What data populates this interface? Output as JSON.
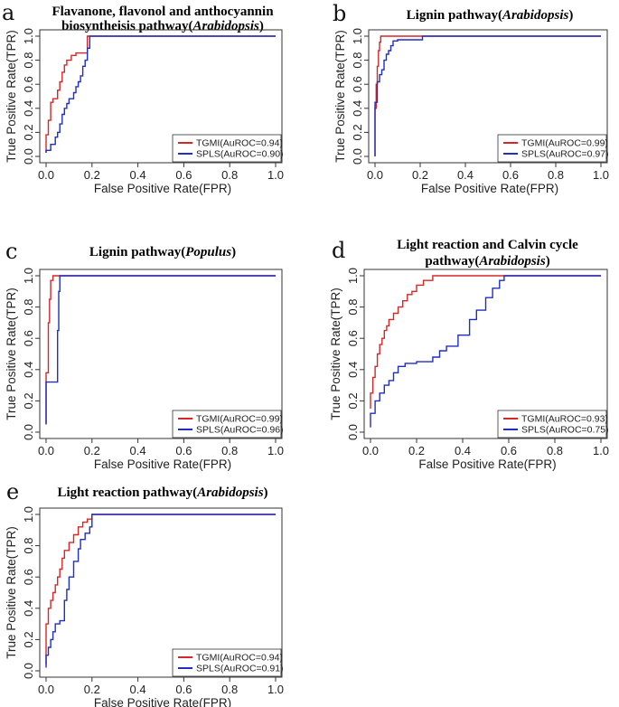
{
  "chart_data": [
    {
      "type": "line",
      "panel": "a",
      "title": [
        "Flavanone, flavonol and anthocyannin",
        "biosyntheisis pathway(",
        "Arabidopsis",
        ")"
      ],
      "xlabel": "False Positive Rate(FPR)",
      "ylabel": "True Positive Rate(TPR)",
      "xlim": [
        0,
        1
      ],
      "ylim": [
        0,
        1
      ],
      "xticks": [
        "0.0",
        "0.2",
        "0.4",
        "0.6",
        "0.8",
        "1.0"
      ],
      "yticks": [
        "0.0",
        "0.2",
        "0.4",
        "0.6",
        "0.8",
        "1.0"
      ],
      "legend_position": "bottom-right",
      "series": [
        {
          "name": "TGMI(AuROC=0.94)",
          "color": "#d62728",
          "x": [
            0.0,
            0.0,
            0.01,
            0.01,
            0.02,
            0.02,
            0.03,
            0.03,
            0.05,
            0.05,
            0.06,
            0.06,
            0.07,
            0.07,
            0.08,
            0.08,
            0.09,
            0.09,
            0.11,
            0.11,
            0.13,
            0.13,
            0.18,
            0.18,
            1.0
          ],
          "y": [
            0.03,
            0.18,
            0.18,
            0.3,
            0.3,
            0.45,
            0.45,
            0.48,
            0.48,
            0.55,
            0.55,
            0.62,
            0.62,
            0.7,
            0.7,
            0.76,
            0.76,
            0.8,
            0.8,
            0.84,
            0.84,
            0.86,
            0.86,
            1.0,
            1.0
          ]
        },
        {
          "name": "SPLS(AuROC=0.90)",
          "color": "#1f2fbf",
          "x": [
            0.0,
            0.0,
            0.02,
            0.02,
            0.04,
            0.04,
            0.05,
            0.05,
            0.06,
            0.06,
            0.07,
            0.07,
            0.08,
            0.08,
            0.09,
            0.09,
            0.1,
            0.1,
            0.12,
            0.12,
            0.13,
            0.13,
            0.14,
            0.14,
            0.15,
            0.15,
            0.16,
            0.16,
            0.17,
            0.17,
            0.18,
            0.18,
            0.19,
            0.19,
            1.0
          ],
          "y": [
            0.03,
            0.05,
            0.05,
            0.1,
            0.1,
            0.16,
            0.16,
            0.2,
            0.2,
            0.27,
            0.27,
            0.35,
            0.35,
            0.4,
            0.4,
            0.44,
            0.44,
            0.48,
            0.48,
            0.53,
            0.53,
            0.58,
            0.58,
            0.62,
            0.62,
            0.67,
            0.67,
            0.75,
            0.75,
            0.8,
            0.8,
            0.9,
            0.9,
            1.0,
            1.0
          ]
        }
      ]
    },
    {
      "type": "line",
      "panel": "b",
      "title": [
        "Lignin pathway(",
        "Arabidopsis",
        ")"
      ],
      "xlabel": "False Positive Rate(FPR)",
      "ylabel": "True Positive Rate(TPR)",
      "xlim": [
        0,
        1
      ],
      "ylim": [
        0,
        1
      ],
      "xticks": [
        "0.0",
        "0.2",
        "0.4",
        "0.6",
        "0.8",
        "1.0"
      ],
      "yticks": [
        "0.0",
        "0.2",
        "0.4",
        "0.6",
        "0.8",
        "1.0"
      ],
      "legend_position": "bottom-right",
      "series": [
        {
          "name": "TGMI(AuROC=0.99)",
          "color": "#d62728",
          "x": [
            0.0,
            0.0,
            0.005,
            0.005,
            0.01,
            0.01,
            0.015,
            0.015,
            0.02,
            0.02,
            0.025,
            0.025,
            1.0
          ],
          "y": [
            0.0,
            0.4,
            0.4,
            0.6,
            0.6,
            0.75,
            0.75,
            0.88,
            0.88,
            0.95,
            0.95,
            1.0,
            1.0
          ]
        },
        {
          "name": "SPLS(AuROC=0.97)",
          "color": "#1f2fbf",
          "x": [
            0.0,
            0.0,
            0.01,
            0.01,
            0.02,
            0.02,
            0.03,
            0.03,
            0.04,
            0.04,
            0.05,
            0.05,
            0.06,
            0.06,
            0.07,
            0.07,
            0.08,
            0.08,
            0.1,
            0.1,
            0.21,
            0.21,
            1.0
          ],
          "y": [
            0.0,
            0.45,
            0.45,
            0.62,
            0.62,
            0.68,
            0.68,
            0.72,
            0.72,
            0.8,
            0.8,
            0.85,
            0.85,
            0.88,
            0.88,
            0.92,
            0.92,
            0.96,
            0.96,
            0.97,
            0.97,
            1.0,
            1.0
          ]
        }
      ]
    },
    {
      "type": "line",
      "panel": "c",
      "title": [
        "Lignin pathway(",
        "Populus",
        ")"
      ],
      "xlabel": "False Positive Rate(FPR)",
      "ylabel": "True Positive Rate(TPR)",
      "xlim": [
        0,
        1
      ],
      "ylim": [
        0,
        1
      ],
      "xticks": [
        "0.0",
        "0.2",
        "0.4",
        "0.6",
        "0.8",
        "1.0"
      ],
      "yticks": [
        "0.0",
        "0.2",
        "0.4",
        "0.6",
        "0.8",
        "1.0"
      ],
      "legend_position": "bottom-right",
      "series": [
        {
          "name": "TGMI(AuROC=0.99)",
          "color": "#d62728",
          "x": [
            0.0,
            0.0,
            0.01,
            0.01,
            0.015,
            0.015,
            0.02,
            0.02,
            0.03,
            0.03,
            1.0
          ],
          "y": [
            0.05,
            0.38,
            0.38,
            0.7,
            0.7,
            0.85,
            0.85,
            0.97,
            0.97,
            1.0,
            1.0
          ]
        },
        {
          "name": "SPLS(AuROC=0.96)",
          "color": "#1f2fbf",
          "x": [
            0.0,
            0.0,
            0.01,
            0.01,
            0.05,
            0.05,
            0.055,
            0.055,
            0.06,
            0.06,
            1.0
          ],
          "y": [
            0.05,
            0.32,
            0.32,
            0.32,
            0.32,
            0.65,
            0.65,
            0.9,
            0.9,
            1.0,
            1.0
          ]
        }
      ]
    },
    {
      "type": "line",
      "panel": "d",
      "title": [
        "Light reaction and Calvin cycle",
        "pathway(",
        "Arabidopsis",
        ")"
      ],
      "xlabel": "False Positive Rate(FPR)",
      "ylabel": "True Positive Rate(TPR)",
      "xlim": [
        0,
        1
      ],
      "ylim": [
        0,
        1
      ],
      "xticks": [
        "0.0",
        "0.2",
        "0.4",
        "0.6",
        "0.8",
        "1.0"
      ],
      "yticks": [
        "0.0",
        "0.2",
        "0.4",
        "0.6",
        "0.8",
        "1.0"
      ],
      "legend_position": "bottom-right",
      "series": [
        {
          "name": "TGMI(AuROC=0.93)",
          "color": "#d62728",
          "x": [
            0.0,
            0.0,
            0.01,
            0.01,
            0.02,
            0.02,
            0.03,
            0.03,
            0.04,
            0.04,
            0.05,
            0.05,
            0.06,
            0.06,
            0.07,
            0.07,
            0.08,
            0.08,
            0.1,
            0.1,
            0.12,
            0.12,
            0.14,
            0.14,
            0.16,
            0.16,
            0.18,
            0.18,
            0.2,
            0.2,
            0.23,
            0.23,
            0.27,
            0.27,
            1.0
          ],
          "y": [
            0.15,
            0.25,
            0.25,
            0.35,
            0.35,
            0.42,
            0.42,
            0.5,
            0.5,
            0.56,
            0.56,
            0.6,
            0.6,
            0.65,
            0.65,
            0.68,
            0.68,
            0.72,
            0.72,
            0.76,
            0.76,
            0.8,
            0.8,
            0.84,
            0.84,
            0.88,
            0.88,
            0.9,
            0.9,
            0.94,
            0.94,
            0.97,
            0.97,
            1.0,
            1.0
          ]
        },
        {
          "name": "SPLS(AuROC=0.75)",
          "color": "#1f2fbf",
          "x": [
            0.0,
            0.0,
            0.02,
            0.02,
            0.04,
            0.04,
            0.06,
            0.06,
            0.08,
            0.08,
            0.1,
            0.1,
            0.12,
            0.12,
            0.15,
            0.15,
            0.2,
            0.2,
            0.27,
            0.27,
            0.3,
            0.3,
            0.33,
            0.33,
            0.38,
            0.38,
            0.43,
            0.43,
            0.46,
            0.46,
            0.5,
            0.5,
            0.53,
            0.53,
            0.56,
            0.56,
            0.58,
            0.58,
            1.0
          ],
          "y": [
            0.03,
            0.12,
            0.12,
            0.2,
            0.2,
            0.25,
            0.25,
            0.3,
            0.3,
            0.33,
            0.33,
            0.38,
            0.38,
            0.42,
            0.42,
            0.44,
            0.44,
            0.45,
            0.45,
            0.48,
            0.48,
            0.52,
            0.52,
            0.55,
            0.55,
            0.62,
            0.62,
            0.72,
            0.72,
            0.78,
            0.78,
            0.86,
            0.86,
            0.92,
            0.92,
            0.97,
            0.97,
            1.0,
            1.0
          ]
        }
      ]
    },
    {
      "type": "line",
      "panel": "e",
      "title": [
        "Light reaction pathway(",
        "Arabidopsis",
        ")"
      ],
      "xlabel": "False Positive Rate(FPR)",
      "ylabel": "True Positive Rate(TPR)",
      "xlim": [
        0,
        1
      ],
      "ylim": [
        0,
        1
      ],
      "xticks": [
        "0.0",
        "0.2",
        "0.4",
        "0.6",
        "0.8",
        "1.0"
      ],
      "yticks": [
        "0.0",
        "0.2",
        "0.4",
        "0.6",
        "0.8",
        "1.0"
      ],
      "legend_position": "bottom-right",
      "series": [
        {
          "name": "TGMI(AuROC=0.94)",
          "color": "#d62728",
          "x": [
            0.0,
            0.0,
            0.01,
            0.01,
            0.02,
            0.02,
            0.03,
            0.03,
            0.04,
            0.04,
            0.05,
            0.05,
            0.06,
            0.06,
            0.07,
            0.07,
            0.08,
            0.08,
            0.1,
            0.1,
            0.12,
            0.12,
            0.14,
            0.14,
            0.16,
            0.16,
            0.18,
            0.18,
            0.2,
            0.2,
            1.0
          ],
          "y": [
            0.04,
            0.3,
            0.3,
            0.4,
            0.4,
            0.45,
            0.45,
            0.5,
            0.5,
            0.55,
            0.55,
            0.6,
            0.6,
            0.65,
            0.65,
            0.72,
            0.72,
            0.77,
            0.77,
            0.82,
            0.82,
            0.87,
            0.87,
            0.92,
            0.92,
            0.95,
            0.95,
            0.97,
            0.97,
            1.0,
            1.0
          ]
        },
        {
          "name": "SPLS(AuROC=0.91)",
          "color": "#1f2fbf",
          "x": [
            0.0,
            0.0,
            0.01,
            0.01,
            0.02,
            0.02,
            0.03,
            0.03,
            0.04,
            0.04,
            0.06,
            0.06,
            0.08,
            0.08,
            0.09,
            0.09,
            0.1,
            0.1,
            0.12,
            0.12,
            0.14,
            0.14,
            0.15,
            0.15,
            0.17,
            0.17,
            0.19,
            0.19,
            0.2,
            0.2,
            1.0
          ],
          "y": [
            0.02,
            0.1,
            0.1,
            0.15,
            0.15,
            0.2,
            0.2,
            0.25,
            0.25,
            0.3,
            0.3,
            0.32,
            0.32,
            0.45,
            0.45,
            0.52,
            0.52,
            0.6,
            0.6,
            0.7,
            0.7,
            0.78,
            0.78,
            0.84,
            0.84,
            0.88,
            0.88,
            0.92,
            0.92,
            1.0,
            1.0
          ]
        }
      ]
    }
  ]
}
